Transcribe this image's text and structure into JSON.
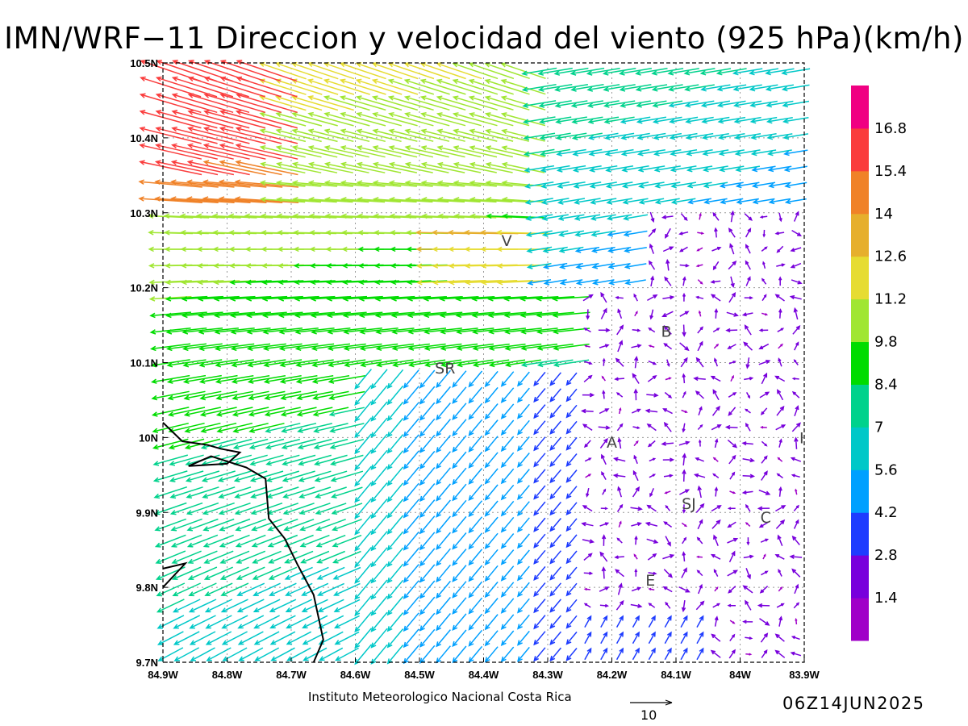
{
  "title": "IMN/WRF−11 Direccion y velocidad del viento (925 hPa)(km/h)",
  "credit": "Instituto Meteorologico Nacional Costa Rica",
  "timestamp": "06Z14JUN2025",
  "reference_vector": {
    "label": "10",
    "magnitude": 10
  },
  "map": {
    "lon_range": [
      -84.9,
      -83.9
    ],
    "lat_range": [
      9.7,
      10.5
    ],
    "x_ticks": [
      {
        "lon": -84.9,
        "label": "84.9W"
      },
      {
        "lon": -84.8,
        "label": "84.8W"
      },
      {
        "lon": -84.7,
        "label": "84.7W"
      },
      {
        "lon": -84.6,
        "label": "84.6W"
      },
      {
        "lon": -84.5,
        "label": "84.5W"
      },
      {
        "lon": -84.4,
        "label": "84.4W"
      },
      {
        "lon": -84.3,
        "label": "84.3W"
      },
      {
        "lon": -84.2,
        "label": "84.2W"
      },
      {
        "lon": -84.1,
        "label": "84.1W"
      },
      {
        "lon": -84.0,
        "label": "84W"
      },
      {
        "lon": -83.9,
        "label": "83.9W"
      }
    ],
    "y_ticks": [
      {
        "lat": 10.5,
        "label": "10.5N"
      },
      {
        "lat": 10.4,
        "label": "10.4N"
      },
      {
        "lat": 10.3,
        "label": "10.3N"
      },
      {
        "lat": 10.2,
        "label": "10.2N"
      },
      {
        "lat": 10.1,
        "label": "10.1N"
      },
      {
        "lat": 10.0,
        "label": "10N"
      },
      {
        "lat": 9.9,
        "label": "9.9N"
      },
      {
        "lat": 9.8,
        "label": "9.8N"
      },
      {
        "lat": 9.7,
        "label": "9.7N"
      }
    ],
    "places": [
      {
        "name": "V",
        "lon": -84.364,
        "lat": 10.263
      },
      {
        "name": "SR",
        "lon": -84.46,
        "lat": 10.093
      },
      {
        "name": "B",
        "lon": -84.115,
        "lat": 10.142
      },
      {
        "name": "A",
        "lon": -84.2,
        "lat": 9.994
      },
      {
        "name": "SJ",
        "lon": -84.08,
        "lat": 9.912
      },
      {
        "name": "E",
        "lon": -84.14,
        "lat": 9.81
      },
      {
        "name": "C",
        "lon": -83.96,
        "lat": 9.894
      },
      {
        "name": "I",
        "lon": -83.904,
        "lat": 10.0
      }
    ],
    "coastline": [
      [
        [
          -84.9,
          10.02
        ],
        [
          -84.87,
          9.995
        ],
        [
          -84.83,
          9.99
        ],
        [
          -84.81,
          9.985
        ],
        [
          -84.78,
          9.98
        ],
        [
          -84.8,
          9.965
        ],
        [
          -84.86,
          9.962
        ],
        [
          -84.825,
          9.975
        ],
        [
          -84.77,
          9.96
        ],
        [
          -84.74,
          9.945
        ],
        [
          -84.735,
          9.892
        ],
        [
          -84.71,
          9.865
        ],
        [
          -84.69,
          9.83
        ],
        [
          -84.665,
          9.79
        ],
        [
          -84.65,
          9.73
        ],
        [
          -84.665,
          9.7
        ]
      ],
      [
        [
          -84.9,
          9.825
        ],
        [
          -84.865,
          9.832
        ],
        [
          -84.9,
          9.8
        ]
      ]
    ]
  },
  "colorbar": {
    "colors": [
      "#a000c8",
      "#7800dc",
      "#1e3cff",
      "#00a0ff",
      "#00c8c8",
      "#00d28c",
      "#00dc00",
      "#a0e632",
      "#e6dc32",
      "#e6af2d",
      "#f08228",
      "#fa3c3c",
      "#f00082"
    ],
    "labels": [
      "1.4",
      "2.8",
      "4.2",
      "5.6",
      "7",
      "8.4",
      "9.8",
      "11.2",
      "12.6",
      "14",
      "15.4",
      "16.8"
    ]
  }
}
